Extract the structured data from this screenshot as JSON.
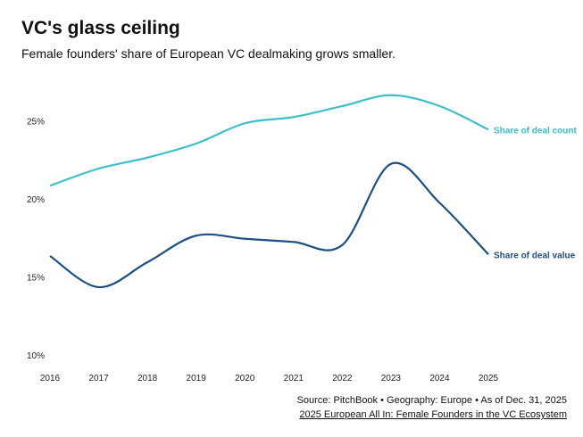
{
  "chart_data": {
    "type": "line",
    "title": "VC's glass ceiling",
    "subtitle": "Female founders' share of European VC dealmaking grows smaller.",
    "x": [
      2016,
      2017,
      2018,
      2019,
      2020,
      2021,
      2022,
      2023,
      2024,
      2025
    ],
    "x_tick_labels": [
      "2016",
      "2017",
      "2018",
      "2019",
      "2020",
      "2021",
      "2022",
      "2023",
      "2024",
      "2025"
    ],
    "ylim": [
      10,
      27
    ],
    "y_ticks": [
      10,
      15,
      20,
      25
    ],
    "y_tick_labels": [
      "10%",
      "15%",
      "20%",
      "25%"
    ],
    "grid": false,
    "series": [
      {
        "name": "Share of deal count",
        "color": "#3bbfcb",
        "values": [
          20.9,
          22.0,
          22.7,
          23.6,
          24.9,
          25.3,
          26.0,
          26.7,
          26.0,
          24.5
        ]
      },
      {
        "name": "Share of deal value",
        "color": "#1e4f82",
        "values": [
          16.4,
          14.4,
          16.0,
          17.7,
          17.5,
          17.3,
          17.1,
          22.3,
          19.8,
          16.5
        ]
      }
    ],
    "legend": "inline-right"
  },
  "source": {
    "line": "Source: PitchBook • Geography: Europe • As of Dec. 31, 2025",
    "link": "2025 European All In: Female Founders in the VC Ecosystem"
  }
}
